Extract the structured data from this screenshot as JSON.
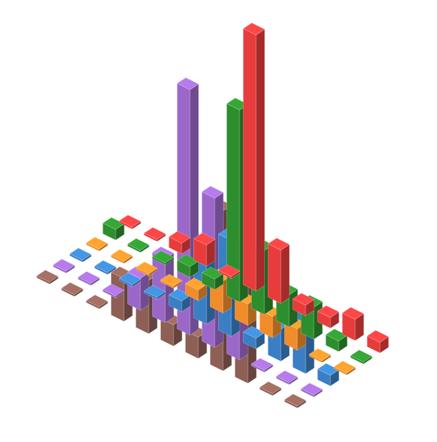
{
  "chart_data": {
    "type": "bar3d",
    "grid": false,
    "legend": "none",
    "series": [
      {
        "name": "",
        "color": "#e83c3c",
        "values": [
          0,
          0,
          1,
          2,
          0,
          24,
          5,
          1,
          1,
          2,
          1
        ]
      },
      {
        "name": "",
        "color": "#2d8e2d",
        "values": [
          1,
          0,
          0,
          1,
          1,
          18,
          6,
          3,
          3,
          1,
          0
        ]
      },
      {
        "name": "",
        "color": "#f28c28",
        "values": [
          0,
          0,
          0,
          0,
          1,
          3,
          2,
          2,
          2,
          0,
          0
        ]
      },
      {
        "name": "",
        "color": "#3a7fc4",
        "values": [
          0,
          0,
          0,
          0,
          1,
          7,
          9,
          1,
          3,
          6,
          1
        ]
      },
      {
        "name": "",
        "color": "#9b68c9",
        "values": [
          0,
          0,
          0,
          3,
          6,
          23,
          14,
          7,
          0,
          0,
          0
        ]
      },
      {
        "name": "",
        "color": "#8d5f55",
        "values": [
          0,
          0,
          0,
          4,
          5,
          2,
          2,
          15,
          12,
          0,
          0
        ]
      }
    ],
    "palette": {
      "red": "#e83c3c",
      "green": "#2d8e2d",
      "orange": "#f28c28",
      "blue": "#3a7fc4",
      "purple": "#9b68c9",
      "brown": "#8d5f55"
    }
  }
}
